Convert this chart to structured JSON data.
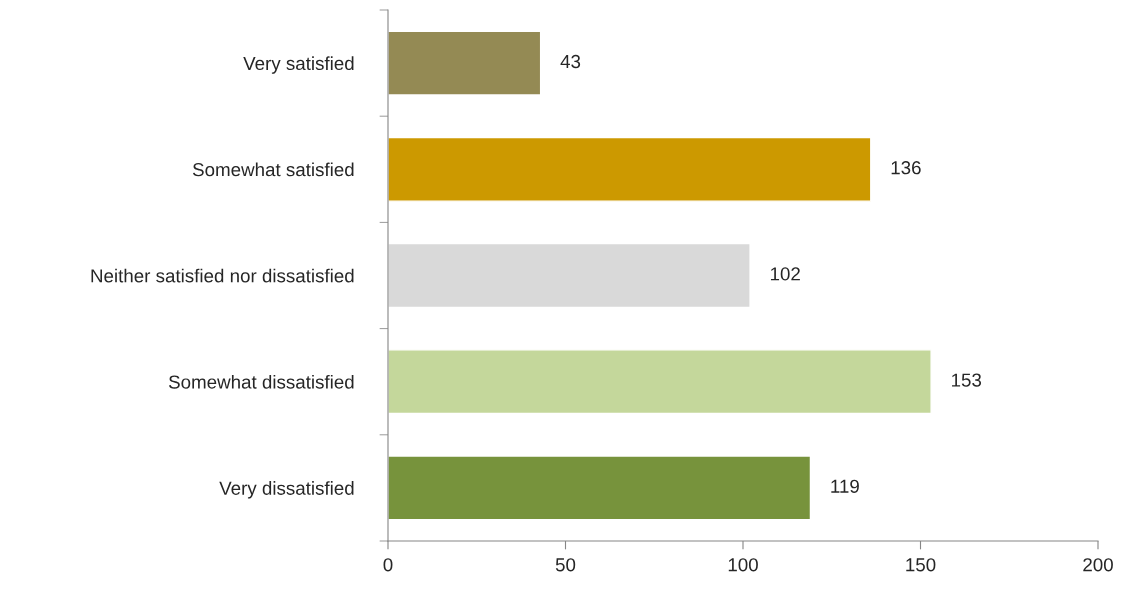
{
  "chart_data": {
    "type": "bar",
    "orientation": "horizontal",
    "categories": [
      "Very satisfied",
      "Somewhat satisfied",
      "Neither satisfied nor dissatisfied",
      "Somewhat dissatisfied",
      "Very dissatisfied"
    ],
    "values": [
      43,
      136,
      102,
      153,
      119
    ],
    "colors": [
      "#948a54",
      "#cc9900",
      "#d9d9d9",
      "#c4d79b",
      "#77933c"
    ],
    "xlim": [
      0,
      200
    ],
    "xticks": [
      0,
      50,
      100,
      150,
      200
    ],
    "data_labels": true,
    "grid": false,
    "legend": false
  }
}
